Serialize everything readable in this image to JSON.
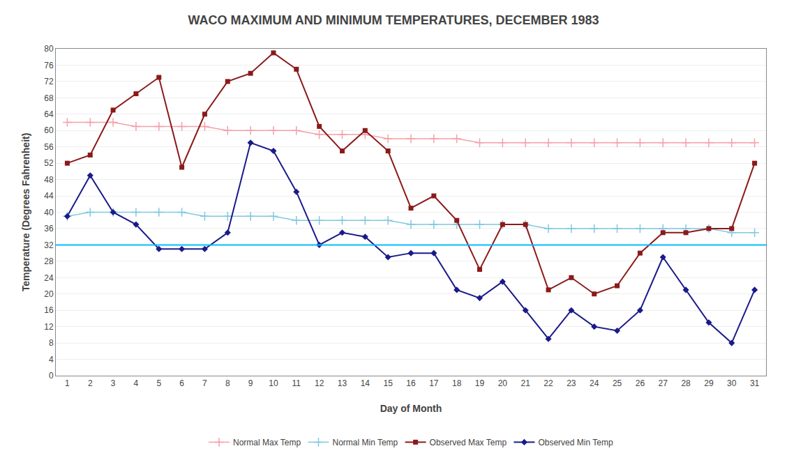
{
  "chart_data": {
    "type": "line",
    "title": "WACO MAXIMUM AND MINIMUM TEMPERATURES, DECEMBER 1983",
    "x_label": "Day of Month",
    "y_label": "Temperature (Degrees Fahrenheit)",
    "x": [
      1,
      2,
      3,
      4,
      5,
      6,
      7,
      8,
      9,
      10,
      11,
      12,
      13,
      14,
      15,
      16,
      17,
      18,
      19,
      20,
      21,
      22,
      23,
      24,
      25,
      26,
      27,
      28,
      29,
      30,
      31
    ],
    "series": [
      {
        "name": "Normal Max Temp",
        "color": "#F4A0A8",
        "marker": "plus",
        "line_style": "solid",
        "values": [
          62,
          62,
          62,
          61,
          61,
          61,
          61,
          60,
          60,
          60,
          60,
          59,
          59,
          59,
          58,
          58,
          58,
          58,
          57,
          57,
          57,
          57,
          57,
          57,
          57,
          57,
          57,
          57,
          57,
          57,
          57
        ]
      },
      {
        "name": "Normal Min Temp",
        "color": "#80C8E0",
        "marker": "plus",
        "line_style": "solid",
        "values": [
          39,
          40,
          40,
          40,
          40,
          40,
          39,
          39,
          39,
          39,
          38,
          38,
          38,
          38,
          38,
          37,
          37,
          37,
          37,
          37,
          37,
          36,
          36,
          36,
          36,
          36,
          36,
          36,
          36,
          35,
          35
        ]
      },
      {
        "name": "Observed Max Temp",
        "color": "#8B1A1A",
        "marker": "square",
        "line_style": "solid",
        "values": [
          52,
          54,
          65,
          69,
          73,
          51,
          64,
          72,
          74,
          79,
          75,
          61,
          55,
          60,
          55,
          41,
          44,
          38,
          26,
          37,
          37,
          21,
          24,
          20,
          22,
          30,
          35,
          35,
          36,
          36,
          52
        ]
      },
      {
        "name": "Observed Min Temp",
        "color": "#1A1A8B",
        "marker": "diamond",
        "line_style": "solid",
        "values": [
          39,
          49,
          40,
          37,
          31,
          31,
          31,
          35,
          57,
          55,
          45,
          32,
          35,
          34,
          29,
          30,
          30,
          21,
          19,
          23,
          16,
          9,
          16,
          12,
          11,
          16,
          29,
          21,
          13,
          8,
          21
        ]
      }
    ],
    "hlines": [
      {
        "value": 32,
        "color": "#00BFFF"
      }
    ],
    "xlim": [
      0.5,
      31.5
    ],
    "xticks": [
      1,
      2,
      3,
      4,
      5,
      6,
      7,
      8,
      9,
      10,
      11,
      12,
      13,
      14,
      15,
      16,
      17,
      18,
      19,
      20,
      21,
      22,
      23,
      24,
      25,
      26,
      27,
      28,
      29,
      30,
      31
    ],
    "ylim": [
      0,
      80
    ],
    "yticks": [
      0,
      4,
      8,
      12,
      16,
      20,
      24,
      28,
      32,
      36,
      40,
      44,
      48,
      52,
      56,
      60,
      64,
      68,
      72,
      76,
      80
    ],
    "grid": "y",
    "legend": "bottom"
  }
}
